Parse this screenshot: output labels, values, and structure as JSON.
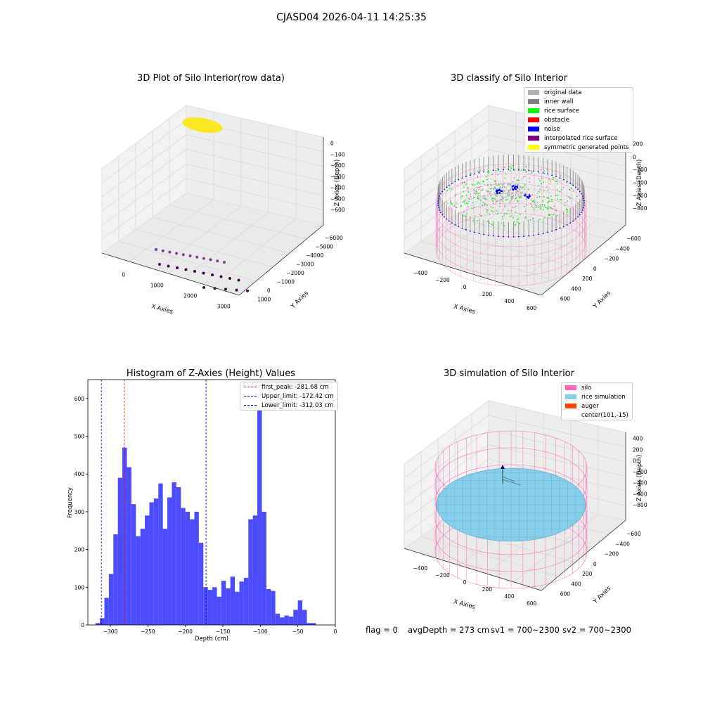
{
  "suptitle": "CJASD04 2026-04-11 14:25:35",
  "status": {
    "flag": "flag = 0",
    "avg_depth": "avgDepth = 273 cm",
    "sv1": "sv1 = 700~2300",
    "sv2": "sv2 = 700~2300"
  },
  "colors": {
    "yellow_cloud": "#fde725",
    "raw_points": "#440154",
    "raw_points_alt": "#7b3f9e",
    "hist_bar": "#4c4cff",
    "peak_line": "#ff0000",
    "limit_line": "#0000cc",
    "silo_pink": "#ff69b4",
    "rice_blue": "#87ceeb",
    "auger": "#ff4500",
    "rice_green": "#00ff00",
    "noise_blue": "#0000ff",
    "wall_gray": "#808080",
    "orig_gray": "#b0b0b0",
    "interp_purple": "#800080",
    "sym_yellow": "#ffff00"
  },
  "chart_data": [
    {
      "type": "scatter",
      "title": "3D Plot of Silo Interior(row data)",
      "xlabel": "X Axies",
      "ylabel": "Y Axies",
      "zlabel": "Z Axies (Depth)",
      "x_ticks": [
        "0",
        "1000",
        "2000",
        "3000"
      ],
      "y_ticks": [
        "1000",
        "0",
        "−1000",
        "−2000",
        "−3000",
        "−4000",
        "−5000",
        "−6000"
      ],
      "z_ticks": [
        "0",
        "−10000",
        "−20000",
        "−30000",
        "−40000",
        "−50000",
        "−60000"
      ]
    },
    {
      "type": "scatter",
      "title": "3D classify of Silo Interior",
      "xlabel": "X Axies",
      "ylabel": "Y Axies",
      "zlabel": "Z Axies (Depth)",
      "x_ticks": [
        "−400",
        "−200",
        "0",
        "200",
        "400",
        "600"
      ],
      "y_ticks": [
        "600",
        "400",
        "200",
        "0",
        "−200",
        "−400",
        "−600"
      ],
      "z_ticks": [
        "200",
        "0",
        "−200",
        "−400",
        "−600",
        "−800"
      ],
      "legend": [
        {
          "label": "original data",
          "color": "#b0b0b0"
        },
        {
          "label": "inner wall",
          "color": "#808080"
        },
        {
          "label": "rice surface",
          "color": "#00ff00"
        },
        {
          "label": "obstacle",
          "color": "#ff0000"
        },
        {
          "label": "noise",
          "color": "#0000ff"
        },
        {
          "label": "interpolated rice surface",
          "color": "#800080"
        },
        {
          "label": "symmetric generated points",
          "color": "#ffff00"
        }
      ]
    },
    {
      "type": "bar",
      "title": "Histogram of Z-Axies (Height) Values",
      "xlabel": "Depth (cm)",
      "ylabel": "Frequency",
      "xlim": [
        -330,
        0
      ],
      "ylim": [
        0,
        650
      ],
      "x_ticks": [
        -300,
        -250,
        -200,
        -150,
        -100,
        -50,
        0
      ],
      "x_tick_labels": [
        "−300",
        "−250",
        "−200",
        "−150",
        "−100",
        "−50",
        "0"
      ],
      "y_ticks": [
        0,
        100,
        200,
        300,
        400,
        500,
        600
      ],
      "bin_start": -320,
      "bin_width": 6,
      "values": [
        5,
        18,
        72,
        135,
        240,
        390,
        470,
        418,
        320,
        235,
        255,
        290,
        325,
        335,
        375,
        255,
        338,
        378,
        365,
        310,
        300,
        280,
        300,
        218,
        100,
        93,
        100,
        75,
        117,
        97,
        128,
        88,
        115,
        125,
        280,
        290,
        620,
        300,
        95,
        90,
        30,
        20,
        25,
        22,
        40,
        65,
        40,
        5,
        5
      ],
      "vlines": [
        {
          "x": -281.68,
          "label": "first_peak: -281.68 cm",
          "color": "#ff0000"
        },
        {
          "x": -172.42,
          "label": "Upper_limit: -172.42 cm",
          "color": "#0000cc"
        },
        {
          "x": -312.03,
          "label": "Lower_limit: -312.03 cm",
          "color": "#0000cc"
        }
      ]
    },
    {
      "type": "scatter",
      "title": "3D simulation of Silo Interior",
      "xlabel": "X Axies",
      "ylabel": "Y Axies",
      "zlabel": "Z Axies (Depth)",
      "x_ticks": [
        "−400",
        "−200",
        "0",
        "200",
        "400",
        "600"
      ],
      "y_ticks": [
        "600",
        "400",
        "200",
        "0",
        "−200",
        "−400",
        "−600"
      ],
      "z_ticks": [
        "400",
        "200",
        "0",
        "−200",
        "−400",
        "−600",
        "−800"
      ],
      "legend": [
        {
          "label": "silo",
          "color": "#ff69b4"
        },
        {
          "label": "rice simulation",
          "color": "#87ceeb"
        },
        {
          "label": "auger",
          "color": "#ff4500"
        },
        {
          "label": "center(101,-15)",
          "color": ""
        }
      ]
    }
  ]
}
